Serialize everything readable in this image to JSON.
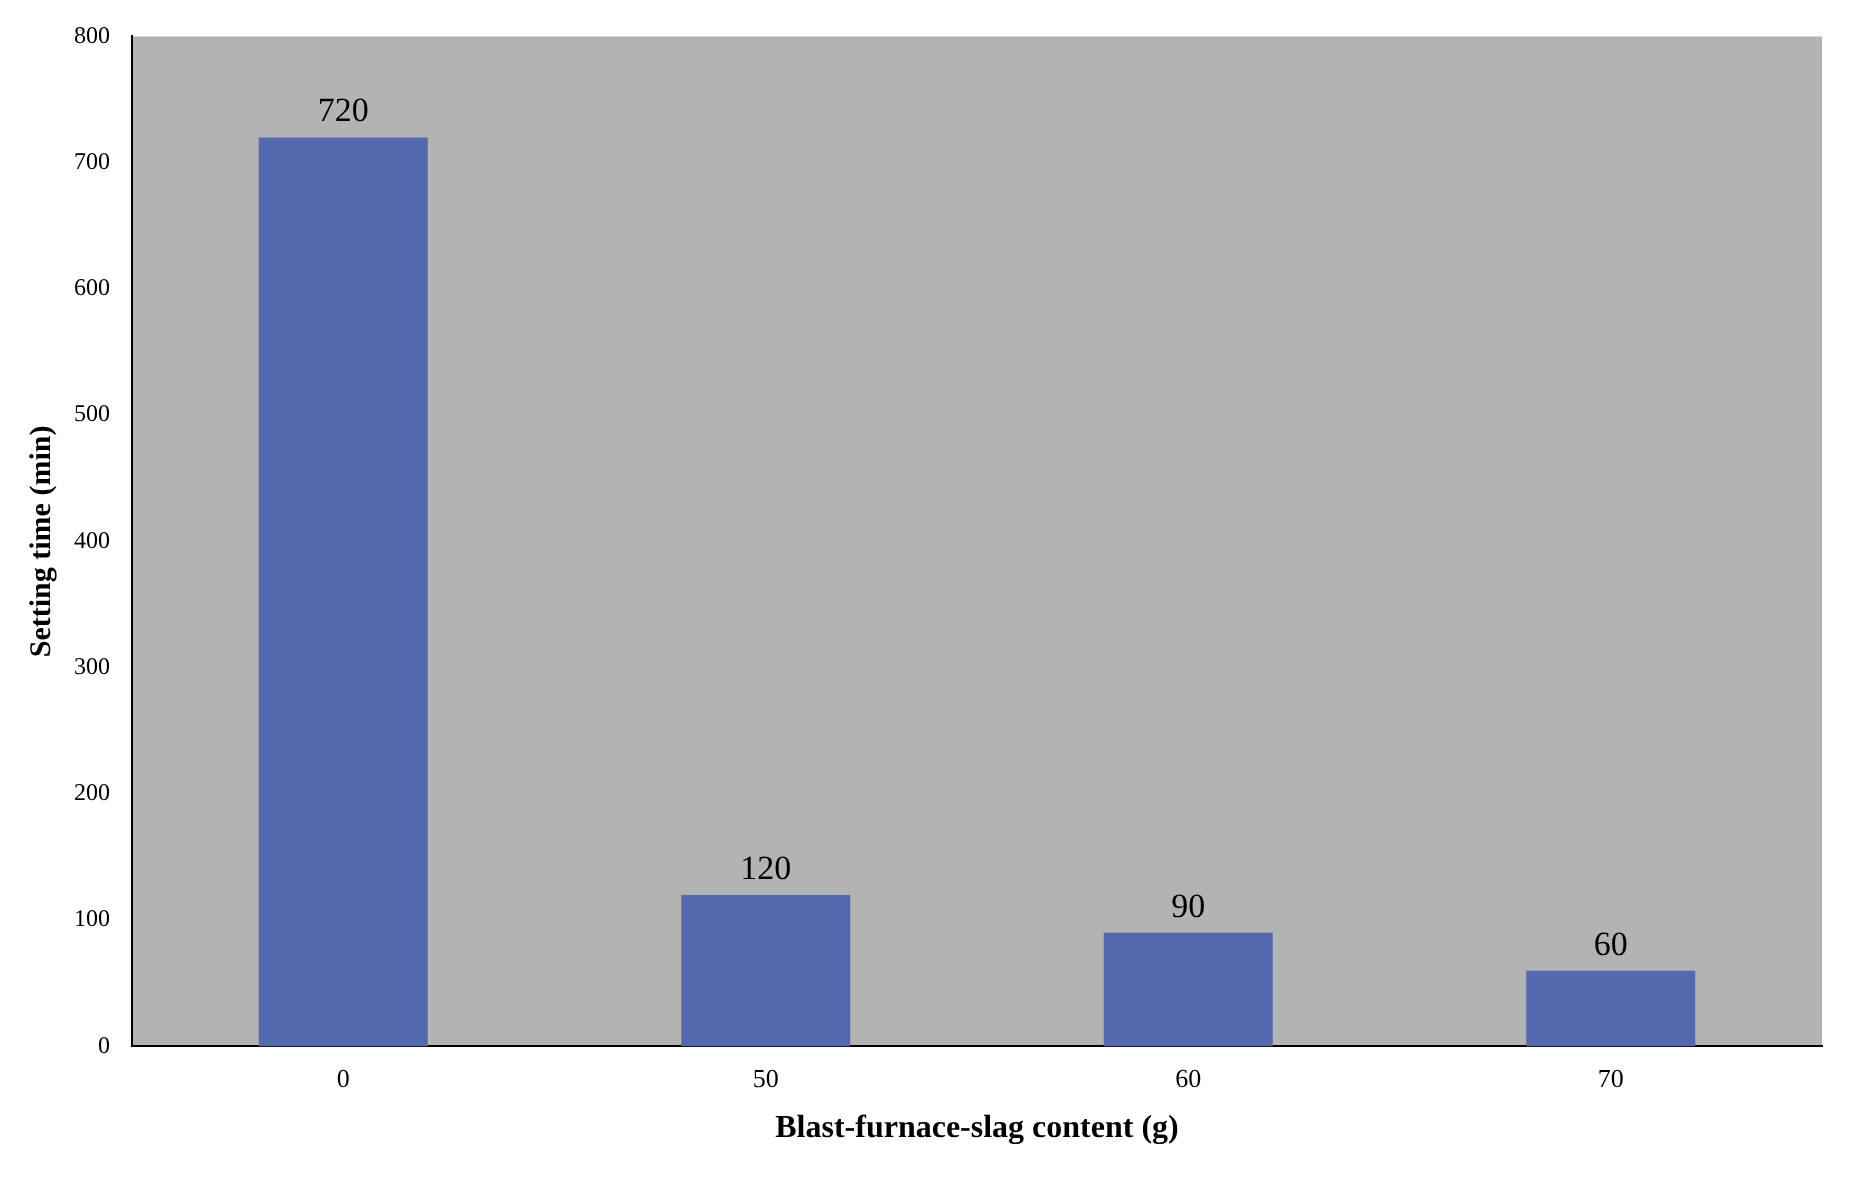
{
  "chart_data": {
    "type": "bar",
    "xlabel": "Blast-furnace-slag content (g)",
    "ylabel": "Setting time (min)",
    "categories": [
      "0",
      "50",
      "60",
      "70"
    ],
    "values": [
      720,
      120,
      90,
      60
    ],
    "color": "#5468ad",
    "ylim": [
      0,
      800
    ],
    "yticks": [
      0,
      100,
      200,
      300,
      400,
      500,
      600,
      700,
      800
    ],
    "grid": false,
    "data_labels": true
  }
}
